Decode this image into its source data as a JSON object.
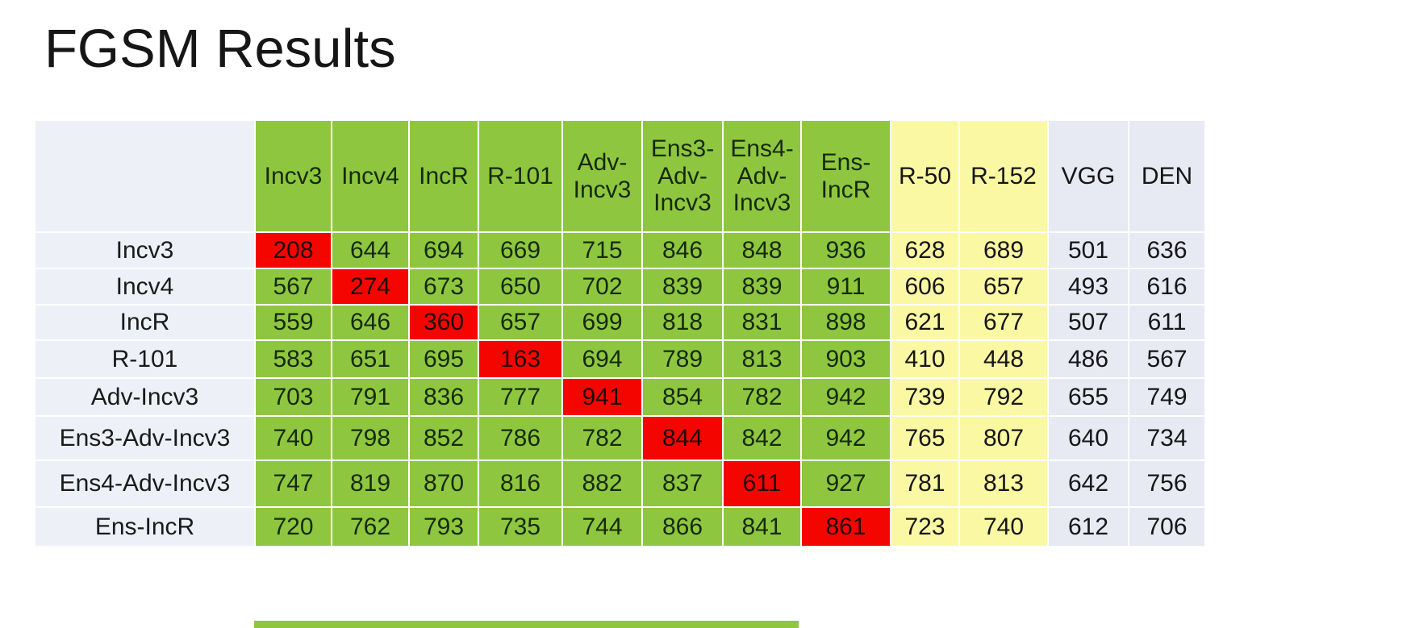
{
  "slide": {
    "title": "FGSM Results"
  },
  "table": {
    "corner_label": "",
    "columns": [
      {
        "label": "Incv3",
        "group": "green"
      },
      {
        "label": "Incv4",
        "group": "green"
      },
      {
        "label": "IncR",
        "group": "green"
      },
      {
        "label": "R-101",
        "group": "green"
      },
      {
        "label": "Adv-Incv3",
        "group": "green"
      },
      {
        "label": "Ens3-Adv-Incv3",
        "group": "green"
      },
      {
        "label": "Ens4-Adv-Incv3",
        "group": "green"
      },
      {
        "label": "Ens-IncR",
        "group": "green"
      },
      {
        "label": "R-50",
        "group": "yellow"
      },
      {
        "label": "R-152",
        "group": "yellow"
      },
      {
        "label": "VGG",
        "group": "plain"
      },
      {
        "label": "DEN",
        "group": "plain"
      }
    ],
    "rows": [
      {
        "label": "Incv3",
        "red_col": 0,
        "values": [
          208,
          644,
          694,
          669,
          715,
          846,
          848,
          936,
          628,
          689,
          501,
          636
        ]
      },
      {
        "label": "Incv4",
        "red_col": 1,
        "values": [
          567,
          274,
          673,
          650,
          702,
          839,
          839,
          911,
          606,
          657,
          493,
          616
        ]
      },
      {
        "label": "IncR",
        "red_col": 2,
        "values": [
          559,
          646,
          360,
          657,
          699,
          818,
          831,
          898,
          621,
          677,
          507,
          611
        ]
      },
      {
        "label": "R-101",
        "red_col": 3,
        "values": [
          583,
          651,
          695,
          163,
          694,
          789,
          813,
          903,
          410,
          448,
          486,
          567
        ]
      },
      {
        "label": "Adv-Incv3",
        "red_col": 4,
        "values": [
          703,
          791,
          836,
          777,
          941,
          854,
          782,
          942,
          739,
          792,
          655,
          749
        ]
      },
      {
        "label": "Ens3-Adv-Incv3",
        "red_col": 5,
        "values": [
          740,
          798,
          852,
          786,
          782,
          844,
          842,
          942,
          765,
          807,
          640,
          734
        ]
      },
      {
        "label": "Ens4-Adv-Incv3",
        "red_col": 6,
        "values": [
          747,
          819,
          870,
          816,
          882,
          837,
          611,
          927,
          781,
          813,
          642,
          756
        ]
      },
      {
        "label": "Ens-IncR",
        "red_col": 7,
        "values": [
          720,
          762,
          793,
          735,
          744,
          866,
          841,
          861,
          723,
          740,
          612,
          706
        ]
      }
    ],
    "colors": {
      "green": "#8ec73f",
      "red": "#f50500",
      "yellow": "#fbf8a3",
      "plain": "#e7e9f3",
      "label_bg": "#eef0f8",
      "grid": "#ffffff"
    }
  },
  "chart_data": {
    "type": "heatmap",
    "title": "FGSM Results",
    "columns": [
      "Incv3",
      "Incv4",
      "IncR",
      "R-101",
      "Adv-Incv3",
      "Ens3-Adv-Incv3",
      "Ens4-Adv-Incv3",
      "Ens-IncR",
      "R-50",
      "R-152",
      "VGG",
      "DEN"
    ],
    "rows": [
      "Incv3",
      "Incv4",
      "IncR",
      "R-101",
      "Adv-Incv3",
      "Ens3-Adv-Incv3",
      "Ens4-Adv-Incv3",
      "Ens-IncR"
    ],
    "values": [
      [
        208,
        644,
        694,
        669,
        715,
        846,
        848,
        936,
        628,
        689,
        501,
        636
      ],
      [
        567,
        274,
        673,
        650,
        702,
        839,
        839,
        911,
        606,
        657,
        493,
        616
      ],
      [
        559,
        646,
        360,
        657,
        699,
        818,
        831,
        898,
        621,
        677,
        507,
        611
      ],
      [
        583,
        651,
        695,
        163,
        694,
        789,
        813,
        903,
        410,
        448,
        486,
        567
      ],
      [
        703,
        791,
        836,
        777,
        941,
        854,
        782,
        942,
        739,
        792,
        655,
        749
      ],
      [
        740,
        798,
        852,
        786,
        782,
        844,
        842,
        942,
        765,
        807,
        640,
        734
      ],
      [
        747,
        819,
        870,
        816,
        882,
        837,
        611,
        927,
        781,
        813,
        642,
        756
      ],
      [
        720,
        762,
        793,
        735,
        744,
        866,
        841,
        861,
        723,
        740,
        612,
        706
      ]
    ],
    "highlighted_diagonal_cells": [
      208,
      274,
      360,
      163,
      941,
      844,
      611,
      861
    ],
    "column_color_groups": {
      "green": [
        "Incv3",
        "Incv4",
        "IncR",
        "R-101",
        "Adv-Incv3",
        "Ens3-Adv-Incv3",
        "Ens4-Adv-Incv3",
        "Ens-IncR"
      ],
      "yellow": [
        "R-50",
        "R-152"
      ],
      "plain": [
        "VGG",
        "DEN"
      ]
    },
    "legend_position": "none",
    "grid": true
  }
}
